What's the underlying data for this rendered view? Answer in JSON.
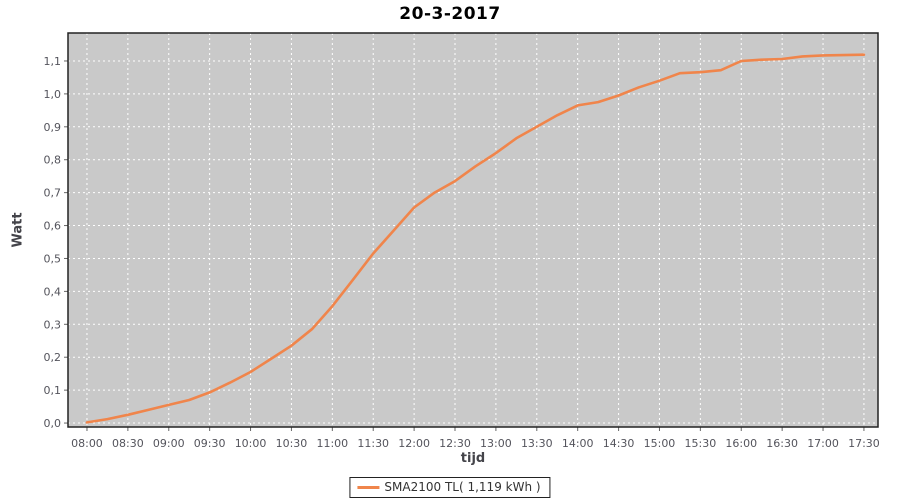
{
  "chart": {
    "title": "20-3-2017",
    "y_axis_title": "Watt",
    "x_axis_title": "tijd",
    "legend": {
      "series_label": "SMA2100 TL( 1,119 kWh )"
    },
    "colors": {
      "series": "#F0854B",
      "plot_background": "#C9C9C9",
      "grid": "#FFFFFF",
      "plot_border": "#222222",
      "tick": "#666666",
      "tick_text": "#54545C",
      "title_text": "#000000"
    }
  },
  "chart_data": {
    "type": "line",
    "title": "20-3-2017",
    "xlabel": "tijd",
    "ylabel": "Watt",
    "legend_position": "bottom-center",
    "grid": true,
    "grid_style": "white dashed on gray plot",
    "x_tick_labels": [
      "08:00",
      "08:30",
      "09:00",
      "09:30",
      "10:00",
      "10:30",
      "11:00",
      "11:30",
      "12:00",
      "12:30",
      "13:00",
      "13:30",
      "14:00",
      "14:30",
      "15:00",
      "15:30",
      "16:00",
      "16:30",
      "17:00",
      "17:30"
    ],
    "y_tick_labels": [
      "0,0",
      "0,1",
      "0,2",
      "0,3",
      "0,4",
      "0,5",
      "0,6",
      "0,7",
      "0,8",
      "0,9",
      "1,0",
      "1,1"
    ],
    "y_tick_values": [
      0.0,
      0.1,
      0.2,
      0.3,
      0.4,
      0.5,
      0.6,
      0.7,
      0.8,
      0.9,
      1.0,
      1.1
    ],
    "xlim_hours": [
      7.768,
      17.672
    ],
    "ylim": [
      -0.012,
      1.185
    ],
    "series": [
      {
        "name": "SMA2100 TL( 1,119 kWh )",
        "color": "#F0854B",
        "total_kwh_label": "1,119 kWh",
        "points": [
          [
            "08:00",
            0.002
          ],
          [
            "08:15",
            0.012
          ],
          [
            "08:30",
            0.025
          ],
          [
            "08:45",
            0.04
          ],
          [
            "09:00",
            0.055
          ],
          [
            "09:15",
            0.07
          ],
          [
            "09:30",
            0.093
          ],
          [
            "09:45",
            0.123
          ],
          [
            "10:00",
            0.155
          ],
          [
            "10:15",
            0.195
          ],
          [
            "10:30",
            0.235
          ],
          [
            "10:45",
            0.285
          ],
          [
            "11:00",
            0.355
          ],
          [
            "11:15",
            0.435
          ],
          [
            "11:30",
            0.515
          ],
          [
            "11:45",
            0.585
          ],
          [
            "12:00",
            0.655
          ],
          [
            "12:15",
            0.7
          ],
          [
            "12:30",
            0.735
          ],
          [
            "12:45",
            0.78
          ],
          [
            "13:00",
            0.82
          ],
          [
            "13:15",
            0.865
          ],
          [
            "13:30",
            0.9
          ],
          [
            "13:45",
            0.935
          ],
          [
            "14:00",
            0.965
          ],
          [
            "14:15",
            0.975
          ],
          [
            "14:30",
            0.995
          ],
          [
            "14:45",
            1.02
          ],
          [
            "15:00",
            1.04
          ],
          [
            "15:15",
            1.063
          ],
          [
            "15:30",
            1.066
          ],
          [
            "15:45",
            1.072
          ],
          [
            "16:00",
            1.1
          ],
          [
            "16:15",
            1.104
          ],
          [
            "16:30",
            1.106
          ],
          [
            "16:45",
            1.114
          ],
          [
            "17:00",
            1.117
          ],
          [
            "17:15",
            1.118
          ],
          [
            "17:30",
            1.119
          ]
        ]
      }
    ]
  }
}
